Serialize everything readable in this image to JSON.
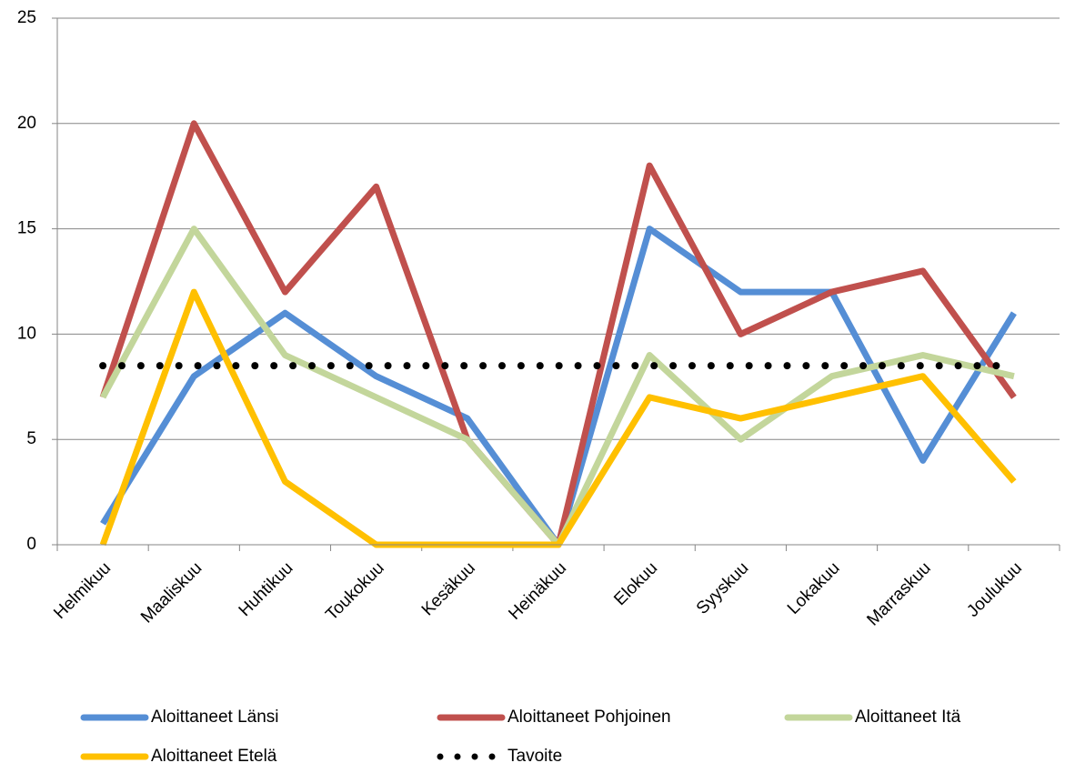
{
  "chart_data": {
    "type": "line",
    "categories": [
      "Helmikuu",
      "Maaliskuu",
      "Huhtikuu",
      "Toukokuu",
      "Kesäkuu",
      "Heinäkuu",
      "Elokuu",
      "Syyskuu",
      "Lokakuu",
      "Marraskuu",
      "Joulukuu"
    ],
    "series": [
      {
        "name": "Aloittaneet Länsi",
        "color": "#558ed5",
        "values": [
          1,
          8,
          11,
          8,
          6,
          0,
          15,
          12,
          12,
          4,
          11
        ]
      },
      {
        "name": "Aloittaneet Pohjoinen",
        "color": "#c0504d",
        "values": [
          7,
          20,
          12,
          17,
          5,
          0,
          18,
          10,
          12,
          13,
          7
        ]
      },
      {
        "name": "Aloittaneet Itä",
        "color": "#c3d69b",
        "values": [
          7,
          15,
          9,
          7,
          5,
          0,
          9,
          5,
          8,
          9,
          8
        ]
      },
      {
        "name": "Aloittaneet Etelä",
        "color": "#ffc000",
        "values": [
          0,
          12,
          3,
          0,
          0,
          0,
          7,
          6,
          7,
          8,
          3
        ]
      },
      {
        "name": "Tavoite",
        "color": "#000000",
        "style": "dotted",
        "values": [
          8.5,
          8.5,
          8.5,
          8.5,
          8.5,
          8.5,
          8.5,
          8.5,
          8.5,
          8.5,
          8.5
        ]
      }
    ],
    "ylim": [
      0,
      25
    ],
    "yticks": [
      0,
      5,
      10,
      15,
      20,
      25
    ],
    "grid": true,
    "legend": "bottom"
  }
}
